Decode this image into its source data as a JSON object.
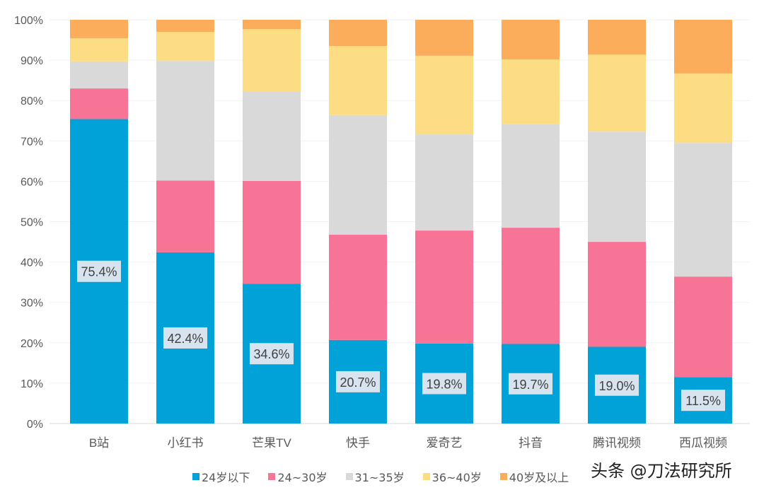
{
  "chart_data": {
    "type": "bar",
    "stacked": true,
    "categories": [
      "B站",
      "小红书",
      "芒果TV",
      "快手",
      "爱奇艺",
      "抖音",
      "腾讯视频",
      "西瓜视频"
    ],
    "series": [
      {
        "name": "24岁以下",
        "color": "#00A2D8",
        "values": [
          75.4,
          42.4,
          34.6,
          20.7,
          19.8,
          19.7,
          19.0,
          11.5
        ]
      },
      {
        "name": "24~30岁",
        "color": "#F87497",
        "values": [
          7.6,
          17.8,
          25.5,
          26.1,
          28.0,
          28.8,
          26.0,
          24.9
        ]
      },
      {
        "name": "31~35岁",
        "color": "#D9D9D9",
        "values": [
          6.7,
          29.6,
          22.2,
          29.6,
          23.8,
          25.6,
          27.3,
          33.1
        ]
      },
      {
        "name": "36~40岁",
        "color": "#FCDD84",
        "values": [
          5.7,
          7.2,
          15.4,
          17.1,
          19.5,
          16.1,
          19.1,
          17.2
        ]
      },
      {
        "name": "40岁及以上",
        "color": "#FBAD5C",
        "values": [
          4.6,
          3.0,
          2.3,
          6.5,
          8.9,
          9.8,
          8.6,
          13.3
        ]
      }
    ],
    "data_labels": [
      "75.4%",
      "42.4%",
      "34.6%",
      "20.7%",
      "19.8%",
      "19.7%",
      "19.0%",
      "11.5%"
    ],
    "yticks": [
      "0%",
      "10%",
      "20%",
      "30%",
      "40%",
      "50%",
      "60%",
      "70%",
      "80%",
      "90%",
      "100%"
    ],
    "ylim": [
      0,
      100
    ],
    "grid": true,
    "legend": "bottom"
  },
  "watermark": "头条 @刀法研究所"
}
